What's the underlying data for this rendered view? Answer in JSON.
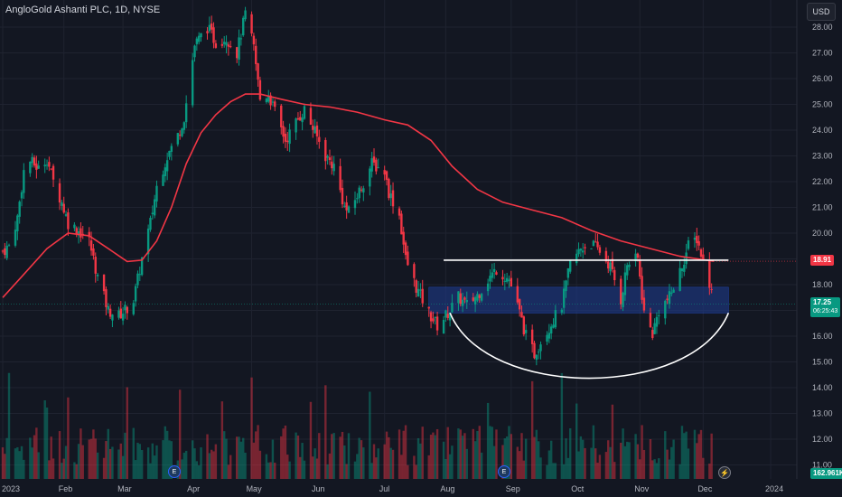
{
  "header": {
    "title": "AngloGold Ashanti PLC, 1D, NYSE",
    "currency": "USD"
  },
  "price_tags": {
    "ma_value": "18.91",
    "last_price": "17.25",
    "countdown": "06:25:43",
    "volume": "162.961K"
  },
  "icons": [
    "earnings-icon",
    "lightning-icon"
  ],
  "colors": {
    "background": "#131722",
    "up": "#089981",
    "down": "#f23645",
    "moving_average": "#f23645",
    "zone": "#1e3a8a",
    "annotation": "#ffffff"
  },
  "chart_data": {
    "type": "candlestick",
    "title": "AngloGold Ashanti PLC, 1D, NYSE",
    "y_axis": {
      "ticks": [
        "28.00",
        "27.00",
        "26.00",
        "25.00",
        "24.00",
        "23.00",
        "22.00",
        "21.00",
        "20.00",
        "19.00",
        "18.00",
        "17.00",
        "16.00",
        "15.00",
        "14.00",
        "13.00",
        "12.00",
        "11.00"
      ],
      "range": [
        10.5,
        28.8
      ],
      "side": "right"
    },
    "x_axis": {
      "ticks": [
        "2023",
        "Feb",
        "Mar",
        "Apr",
        "May",
        "Jun",
        "Jul",
        "Aug",
        "Sep",
        "Oct",
        "Nov",
        "Dec",
        "2024"
      ]
    },
    "series": [
      {
        "name": "Price",
        "kind": "candlestick",
        "close_path": [
          [
            "2023-01-03",
            19.3
          ],
          [
            "2023-01-06",
            19.5
          ],
          [
            "2023-01-10",
            20.6
          ],
          [
            "2023-01-13",
            22.4
          ],
          [
            "2023-01-16",
            22.8
          ],
          [
            "2023-01-20",
            22.5
          ],
          [
            "2023-01-24",
            22.9
          ],
          [
            "2023-01-27",
            22.0
          ],
          [
            "2023-01-31",
            21.2
          ],
          [
            "2023-02-03",
            20.4
          ],
          [
            "2023-02-08",
            20.1
          ],
          [
            "2023-02-13",
            19.7
          ],
          [
            "2023-02-17",
            18.3
          ],
          [
            "2023-02-22",
            17.0
          ],
          [
            "2023-02-27",
            16.8
          ],
          [
            "2023-03-03",
            17.1
          ],
          [
            "2023-03-06",
            17.4
          ],
          [
            "2023-03-10",
            19.0
          ],
          [
            "2023-03-14",
            20.4
          ],
          [
            "2023-03-17",
            21.8
          ],
          [
            "2023-03-22",
            23.0
          ],
          [
            "2023-03-27",
            23.8
          ],
          [
            "2023-03-30",
            24.5
          ],
          [
            "2023-04-04",
            27.3
          ],
          [
            "2023-04-10",
            28.0
          ],
          [
            "2023-04-14",
            27.4
          ],
          [
            "2023-04-19",
            27.6
          ],
          [
            "2023-04-24",
            27.0
          ],
          [
            "2023-04-28",
            28.5
          ],
          [
            "2023-05-02",
            27.2
          ],
          [
            "2023-05-05",
            25.2
          ],
          [
            "2023-05-09",
            25.4
          ],
          [
            "2023-05-12",
            24.7
          ],
          [
            "2023-05-17",
            23.6
          ],
          [
            "2023-05-22",
            24.3
          ],
          [
            "2023-05-26",
            24.8
          ],
          [
            "2023-05-31",
            23.9
          ],
          [
            "2023-06-05",
            23.0
          ],
          [
            "2023-06-09",
            22.6
          ],
          [
            "2023-06-14",
            21.0
          ],
          [
            "2023-06-16",
            20.8
          ],
          [
            "2023-06-22",
            21.8
          ],
          [
            "2023-06-27",
            22.7
          ],
          [
            "2023-07-03",
            22.4
          ],
          [
            "2023-07-05",
            21.6
          ],
          [
            "2023-07-10",
            20.7
          ],
          [
            "2023-07-13",
            19.0
          ],
          [
            "2023-07-18",
            17.9
          ],
          [
            "2023-07-24",
            16.9
          ],
          [
            "2023-07-28",
            16.4
          ],
          [
            "2023-08-02",
            16.9
          ],
          [
            "2023-08-07",
            17.5
          ],
          [
            "2023-08-11",
            17.2
          ],
          [
            "2023-08-16",
            17.6
          ],
          [
            "2023-08-21",
            18.2
          ],
          [
            "2023-08-25",
            18.6
          ],
          [
            "2023-08-31",
            18.2
          ],
          [
            "2023-09-05",
            16.9
          ],
          [
            "2023-09-08",
            16.0
          ],
          [
            "2023-09-12",
            15.3
          ],
          [
            "2023-09-15",
            15.8
          ],
          [
            "2023-09-20",
            16.5
          ],
          [
            "2023-09-25",
            17.2
          ],
          [
            "2023-09-29",
            18.8
          ],
          [
            "2023-10-04",
            19.4
          ],
          [
            "2023-10-09",
            19.6
          ],
          [
            "2023-10-13",
            19.3
          ],
          [
            "2023-10-18",
            18.7
          ],
          [
            "2023-10-23",
            17.4
          ],
          [
            "2023-10-26",
            18.8
          ],
          [
            "2023-10-31",
            19.0
          ],
          [
            "2023-11-03",
            16.9
          ],
          [
            "2023-11-07",
            16.1
          ],
          [
            "2023-11-10",
            17.0
          ],
          [
            "2023-11-15",
            17.5
          ],
          [
            "2023-11-20",
            18.5
          ],
          [
            "2023-11-24",
            19.5
          ],
          [
            "2023-11-28",
            19.8
          ],
          [
            "2023-12-01",
            18.9
          ],
          [
            "2023-12-04",
            18.1
          ],
          [
            "2023-12-06",
            17.25
          ]
        ]
      },
      {
        "name": "Moving Average",
        "kind": "line",
        "points": [
          [
            "2023-01-03",
            17.5
          ],
          [
            "2023-01-13",
            18.4
          ],
          [
            "2023-01-24",
            19.4
          ],
          [
            "2023-02-03",
            20.0
          ],
          [
            "2023-02-13",
            19.9
          ],
          [
            "2023-02-22",
            19.4
          ],
          [
            "2023-03-03",
            18.9
          ],
          [
            "2023-03-10",
            18.95
          ],
          [
            "2023-03-17",
            19.7
          ],
          [
            "2023-03-24",
            21.0
          ],
          [
            "2023-03-31",
            22.7
          ],
          [
            "2023-04-07",
            23.9
          ],
          [
            "2023-04-14",
            24.6
          ],
          [
            "2023-04-21",
            25.1
          ],
          [
            "2023-04-28",
            25.4
          ],
          [
            "2023-05-05",
            25.4
          ],
          [
            "2023-05-15",
            25.2
          ],
          [
            "2023-05-26",
            25.0
          ],
          [
            "2023-06-07",
            24.9
          ],
          [
            "2023-06-20",
            24.7
          ],
          [
            "2023-07-03",
            24.4
          ],
          [
            "2023-07-14",
            24.2
          ],
          [
            "2023-07-25",
            23.6
          ],
          [
            "2023-08-04",
            22.6
          ],
          [
            "2023-08-16",
            21.7
          ],
          [
            "2023-08-28",
            21.2
          ],
          [
            "2023-09-11",
            20.9
          ],
          [
            "2023-09-25",
            20.6
          ],
          [
            "2023-10-09",
            20.1
          ],
          [
            "2023-10-23",
            19.7
          ],
          [
            "2023-11-06",
            19.4
          ],
          [
            "2023-11-20",
            19.1
          ],
          [
            "2023-12-06",
            18.91
          ]
        ]
      },
      {
        "name": "Volume",
        "kind": "histogram",
        "last_value": "162.961K"
      }
    ],
    "annotations": {
      "horizontal_line": {
        "value": 18.95,
        "from": "2023-07-31",
        "to": "2023-12-13",
        "color": "#ffffff"
      },
      "zone": {
        "low": 16.9,
        "high": 17.9,
        "from": "2023-07-24",
        "to": "2023-12-13"
      },
      "arc": {
        "from": "2023-08-03",
        "to": "2023-12-13",
        "bottom": 14.4,
        "ends": 16.9
      }
    },
    "grid": true,
    "legend": "none"
  }
}
